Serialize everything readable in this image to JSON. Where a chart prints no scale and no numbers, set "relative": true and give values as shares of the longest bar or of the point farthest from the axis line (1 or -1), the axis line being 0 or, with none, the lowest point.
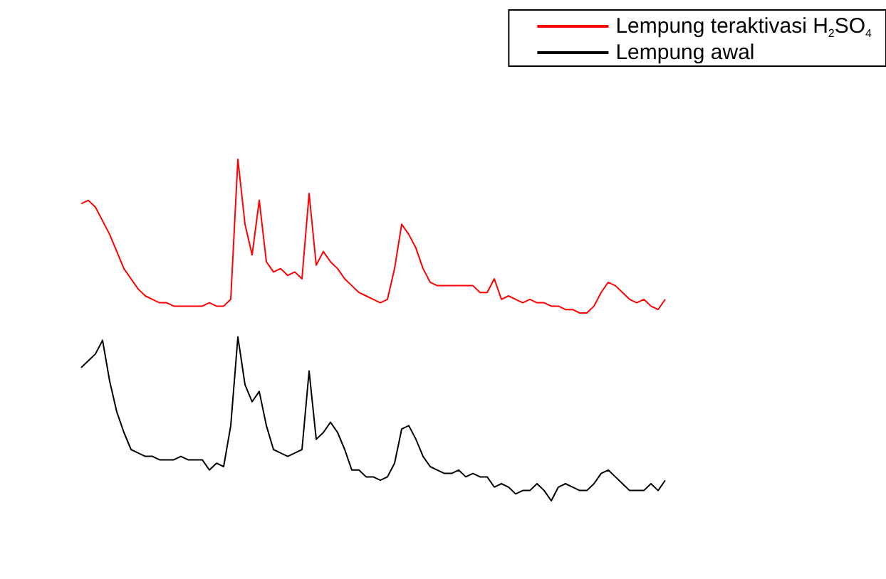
{
  "chart_data": {
    "type": "line",
    "relative": true,
    "legend": "top right",
    "marker": "none",
    "line_style": "solid",
    "categories": [
      null,
      null,
      null,
      null,
      null,
      null,
      null,
      null,
      null,
      null,
      null,
      null,
      null,
      null,
      null,
      null,
      null,
      null,
      null,
      null,
      null,
      null,
      null,
      null,
      null,
      null,
      null,
      null,
      null,
      null,
      null,
      null,
      null,
      null,
      null,
      null,
      null,
      null,
      null,
      null,
      null,
      null,
      null,
      null,
      null,
      null,
      null,
      null,
      null,
      null,
      null,
      null,
      null,
      null,
      null,
      null,
      null,
      null,
      null,
      null,
      null,
      null,
      null,
      null,
      null,
      null,
      null,
      null,
      null,
      null,
      null,
      null,
      null,
      null,
      null,
      null,
      null,
      null,
      null,
      null,
      null,
      null,
      null
    ],
    "series": [
      {
        "name": "Lempung teraktivasi H$_{2}$SO$_{4}$",
        "color": "#ff0000",
        "values": [
          0.87,
          0.88,
          0.86,
          0.82,
          0.78,
          0.73,
          0.68,
          0.65,
          0.62,
          0.6,
          0.59,
          0.58,
          0.58,
          0.57,
          0.57,
          0.57,
          0.57,
          0.57,
          0.58,
          0.57,
          0.57,
          0.59,
          1,
          0.81,
          0.72,
          0.88,
          0.7,
          0.67,
          0.68,
          0.66,
          0.67,
          0.65,
          0.9,
          0.69,
          0.73,
          0.7,
          0.68,
          0.65,
          0.63,
          0.61,
          0.6,
          0.59,
          0.58,
          0.59,
          0.68,
          0.81,
          0.78,
          0.74,
          0.68,
          0.64,
          0.63,
          0.63,
          0.63,
          0.63,
          0.63,
          0.63,
          0.61,
          0.61,
          0.65,
          0.59,
          0.6,
          0.59,
          0.58,
          0.59,
          0.58,
          0.58,
          0.57,
          0.57,
          0.56,
          0.56,
          0.55,
          0.55,
          0.57,
          0.61,
          0.64,
          0.63,
          0.61,
          0.59,
          0.58,
          0.59,
          0.57,
          0.56,
          0.59
        ]
      },
      {
        "name": "Lempung awal",
        "color": "#000000",
        "values": [
          0.39,
          0.41,
          0.43,
          0.47,
          0.35,
          0.26,
          0.2,
          0.15,
          0.14,
          0.13,
          0.13,
          0.12,
          0.12,
          0.12,
          0.13,
          0.12,
          0.12,
          0.12,
          0.09,
          0.11,
          0.1,
          0.22,
          0.48,
          0.34,
          0.29,
          0.32,
          0.22,
          0.15,
          0.14,
          0.13,
          0.14,
          0.15,
          0.38,
          0.18,
          0.2,
          0.23,
          0.2,
          0.15,
          0.09,
          0.09,
          0.07,
          0.07,
          0.06,
          0.07,
          0.11,
          0.21,
          0.22,
          0.18,
          0.13,
          0.1,
          0.09,
          0.08,
          0.08,
          0.09,
          0.07,
          0.08,
          0.07,
          0.07,
          0.04,
          0.05,
          0.04,
          0.02,
          0.03,
          0.03,
          0.05,
          0.03,
          0,
          0.04,
          0.05,
          0.04,
          0.03,
          0.03,
          0.05,
          0.08,
          0.09,
          0.07,
          0.05,
          0.03,
          0.03,
          0.03,
          0.05,
          0.03,
          0.06
        ]
      }
    ]
  }
}
